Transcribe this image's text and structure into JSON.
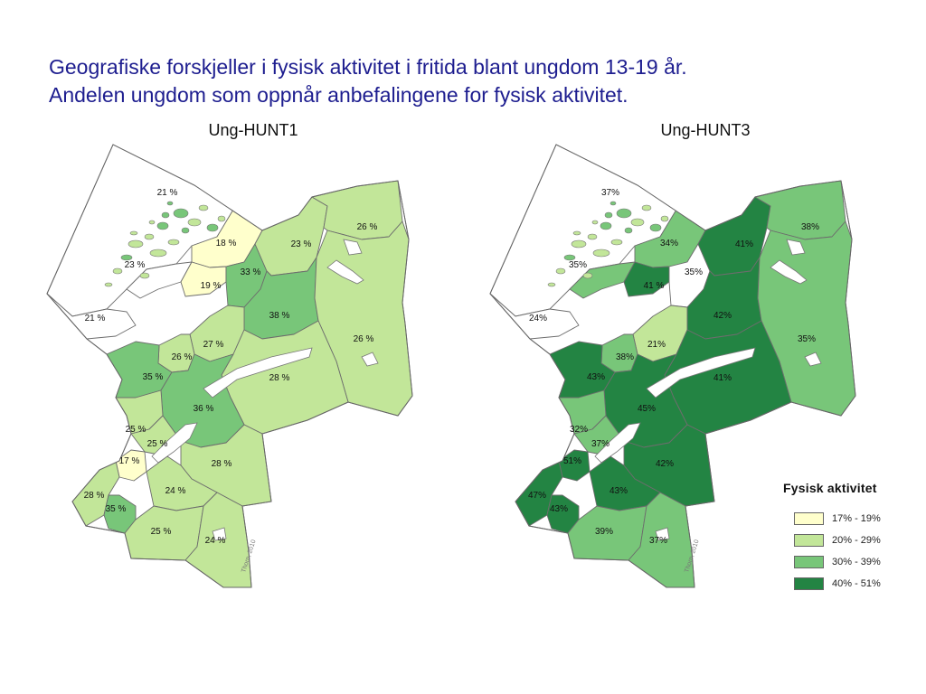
{
  "title_lines": [
    "Geografiske forskjeller i fysisk aktivitet i fritida blant ungdom 13-19 år.",
    "Andelen ungdom som oppnår anbefalingene for fysisk aktivitet."
  ],
  "maps": [
    {
      "title": "Ung-HUNT1",
      "regions": [
        {
          "label": "21 %",
          "value": 21,
          "color": "#ffffff"
        },
        {
          "label": "18 %",
          "value": 18,
          "color": "#ffffcc"
        },
        {
          "label": "23 %",
          "value": 23,
          "color": "#ffffff"
        },
        {
          "label": "19 %",
          "value": 19,
          "color": "#ffffcc"
        },
        {
          "label": "33 %",
          "value": 33,
          "color": "#78c679"
        },
        {
          "label": "23 %",
          "value": 23,
          "color": "#c2e699"
        },
        {
          "label": "26 %",
          "value": 26,
          "color": "#c2e699"
        },
        {
          "label": "21 %",
          "value": 21,
          "color": "#ffffff"
        },
        {
          "label": "38 %",
          "value": 38,
          "color": "#78c679"
        },
        {
          "label": "27 %",
          "value": 27,
          "color": "#c2e699"
        },
        {
          "label": "26 %",
          "value": 26,
          "color": "#c2e699"
        },
        {
          "label": "26 %",
          "value": 26,
          "color": "#c2e699"
        },
        {
          "label": "35 %",
          "value": 35,
          "color": "#78c679"
        },
        {
          "label": "28 %",
          "value": 28,
          "color": "#c2e699"
        },
        {
          "label": "36 %",
          "value": 36,
          "color": "#78c679"
        },
        {
          "label": "25 %",
          "value": 25,
          "color": "#c2e699"
        },
        {
          "label": "25 %",
          "value": 25,
          "color": "#c2e699"
        },
        {
          "label": "17 %",
          "value": 17,
          "color": "#ffffcc"
        },
        {
          "label": "28 %",
          "value": 28,
          "color": "#c2e699"
        },
        {
          "label": "28 %",
          "value": 28,
          "color": "#c2e699"
        },
        {
          "label": "24 %",
          "value": 24,
          "color": "#c2e699"
        },
        {
          "label": "35 %",
          "value": 35,
          "color": "#78c679"
        },
        {
          "label": "25 %",
          "value": 25,
          "color": "#c2e699"
        },
        {
          "label": "24 %",
          "value": 24,
          "color": "#c2e699"
        }
      ],
      "credit": "Thorn, 2010"
    },
    {
      "title": "Ung-HUNT3",
      "regions": [
        {
          "label": "37%",
          "value": 37,
          "color": "#ffffff"
        },
        {
          "label": "34%",
          "value": 34,
          "color": "#78c679"
        },
        {
          "label": "35%",
          "value": 35,
          "color": "#78c679"
        },
        {
          "label": "41 %",
          "value": 41,
          "color": "#238443"
        },
        {
          "label": "35%",
          "value": 35,
          "color": "#ffffff"
        },
        {
          "label": "41%",
          "value": 41,
          "color": "#238443"
        },
        {
          "label": "38%",
          "value": 38,
          "color": "#78c679"
        },
        {
          "label": "24%",
          "value": 24,
          "color": "#ffffff"
        },
        {
          "label": "42%",
          "value": 42,
          "color": "#238443"
        },
        {
          "label": "21%",
          "value": 21,
          "color": "#c2e699"
        },
        {
          "label": "38%",
          "value": 38,
          "color": "#78c679"
        },
        {
          "label": "35%",
          "value": 35,
          "color": "#78c679"
        },
        {
          "label": "43%",
          "value": 43,
          "color": "#238443"
        },
        {
          "label": "41%",
          "value": 41,
          "color": "#238443"
        },
        {
          "label": "45%",
          "value": 45,
          "color": "#238443"
        },
        {
          "label": "32%",
          "value": 32,
          "color": "#78c679"
        },
        {
          "label": "37%",
          "value": 37,
          "color": "#78c679"
        },
        {
          "label": "51%",
          "value": 51,
          "color": "#238443"
        },
        {
          "label": "42%",
          "value": 42,
          "color": "#238443"
        },
        {
          "label": "47%",
          "value": 47,
          "color": "#238443"
        },
        {
          "label": "43%",
          "value": 43,
          "color": "#238443"
        },
        {
          "label": "43%",
          "value": 43,
          "color": "#238443"
        },
        {
          "label": "39%",
          "value": 39,
          "color": "#78c679"
        },
        {
          "label": "37%",
          "value": 37,
          "color": "#78c679"
        }
      ],
      "credit": "Thorn, 2010"
    }
  ],
  "legend": {
    "title": "Fysisk aktivitet",
    "items": [
      {
        "label": "17% - 19%",
        "color": "#ffffcc"
      },
      {
        "label": "20% - 29%",
        "color": "#c2e699"
      },
      {
        "label": "30% - 39%",
        "color": "#78c679"
      },
      {
        "label": "40% - 51%",
        "color": "#238443"
      }
    ]
  }
}
